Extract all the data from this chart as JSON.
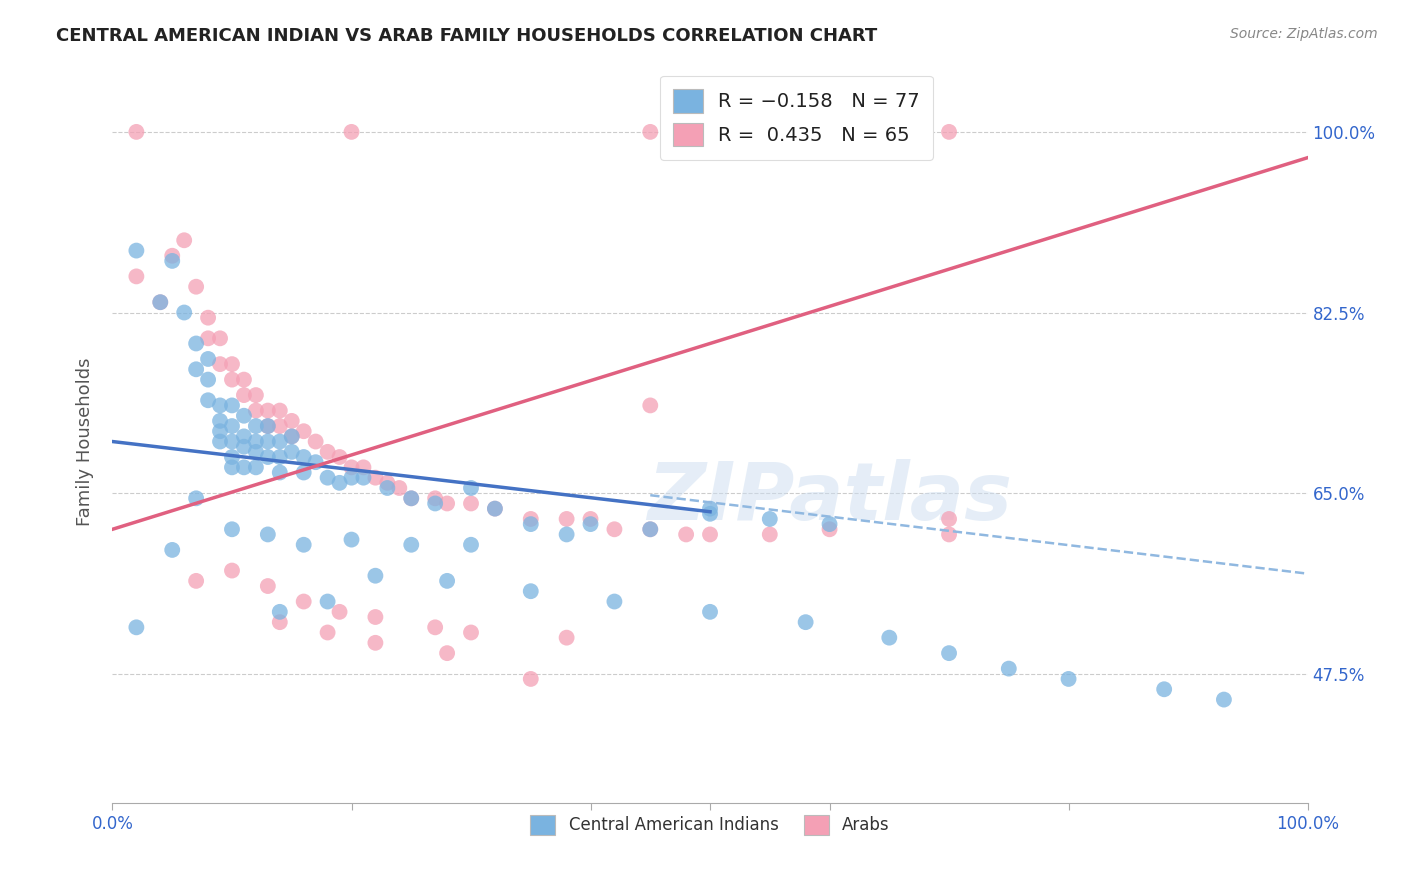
{
  "title": "CENTRAL AMERICAN INDIAN VS ARAB FAMILY HOUSEHOLDS CORRELATION CHART",
  "source": "Source: ZipAtlas.com",
  "ylabel": "Family Households",
  "ytick_labels": [
    "100.0%",
    "82.5%",
    "65.0%",
    "47.5%"
  ],
  "ytick_values": [
    1.0,
    0.825,
    0.65,
    0.475
  ],
  "xlim": [
    0.0,
    1.0
  ],
  "ylim": [
    0.35,
    1.05
  ],
  "legend_label1": "Central American Indians",
  "legend_label2": "Arabs",
  "blue_color": "#7ab3e0",
  "pink_color": "#f4a0b5",
  "blue_line_color": "#4472c4",
  "pink_line_color": "#e06080",
  "dashed_line_color": "#90b8e0",
  "watermark": "ZIPatlas",
  "blue_scatter_x": [
    0.02,
    0.04,
    0.05,
    0.06,
    0.07,
    0.07,
    0.08,
    0.08,
    0.08,
    0.09,
    0.09,
    0.09,
    0.09,
    0.1,
    0.1,
    0.1,
    0.1,
    0.1,
    0.11,
    0.11,
    0.11,
    0.11,
    0.12,
    0.12,
    0.12,
    0.12,
    0.13,
    0.13,
    0.13,
    0.14,
    0.14,
    0.14,
    0.15,
    0.15,
    0.16,
    0.16,
    0.17,
    0.18,
    0.19,
    0.2,
    0.21,
    0.23,
    0.25,
    0.27,
    0.3,
    0.32,
    0.35,
    0.4,
    0.45,
    0.5,
    0.02,
    0.05,
    0.07,
    0.1,
    0.13,
    0.16,
    0.2,
    0.25,
    0.3,
    0.38,
    0.14,
    0.18,
    0.22,
    0.28,
    0.35,
    0.42,
    0.5,
    0.58,
    0.65,
    0.7,
    0.75,
    0.8,
    0.88,
    0.93,
    0.5,
    0.55,
    0.6
  ],
  "blue_scatter_y": [
    0.885,
    0.835,
    0.875,
    0.825,
    0.795,
    0.77,
    0.78,
    0.76,
    0.74,
    0.735,
    0.72,
    0.71,
    0.7,
    0.735,
    0.715,
    0.7,
    0.685,
    0.675,
    0.725,
    0.705,
    0.695,
    0.675,
    0.715,
    0.7,
    0.69,
    0.675,
    0.715,
    0.7,
    0.685,
    0.7,
    0.685,
    0.67,
    0.705,
    0.69,
    0.685,
    0.67,
    0.68,
    0.665,
    0.66,
    0.665,
    0.665,
    0.655,
    0.645,
    0.64,
    0.655,
    0.635,
    0.62,
    0.62,
    0.615,
    0.63,
    0.52,
    0.595,
    0.645,
    0.615,
    0.61,
    0.6,
    0.605,
    0.6,
    0.6,
    0.61,
    0.535,
    0.545,
    0.57,
    0.565,
    0.555,
    0.545,
    0.535,
    0.525,
    0.51,
    0.495,
    0.48,
    0.47,
    0.46,
    0.45,
    0.635,
    0.625,
    0.62
  ],
  "pink_scatter_x": [
    0.02,
    0.04,
    0.05,
    0.06,
    0.07,
    0.08,
    0.08,
    0.09,
    0.09,
    0.1,
    0.1,
    0.11,
    0.11,
    0.12,
    0.12,
    0.13,
    0.13,
    0.14,
    0.14,
    0.15,
    0.15,
    0.16,
    0.17,
    0.18,
    0.19,
    0.2,
    0.21,
    0.22,
    0.23,
    0.24,
    0.25,
    0.27,
    0.28,
    0.3,
    0.32,
    0.35,
    0.38,
    0.4,
    0.42,
    0.45,
    0.48,
    0.5,
    0.55,
    0.6,
    0.7,
    0.7,
    0.45,
    0.02,
    0.2,
    0.45,
    0.7,
    0.07,
    0.1,
    0.13,
    0.16,
    0.19,
    0.22,
    0.27,
    0.3,
    0.38,
    0.14,
    0.18,
    0.22,
    0.28,
    0.35
  ],
  "pink_scatter_y": [
    0.86,
    0.835,
    0.88,
    0.895,
    0.85,
    0.8,
    0.82,
    0.775,
    0.8,
    0.76,
    0.775,
    0.76,
    0.745,
    0.745,
    0.73,
    0.73,
    0.715,
    0.73,
    0.715,
    0.72,
    0.705,
    0.71,
    0.7,
    0.69,
    0.685,
    0.675,
    0.675,
    0.665,
    0.66,
    0.655,
    0.645,
    0.645,
    0.64,
    0.64,
    0.635,
    0.625,
    0.625,
    0.625,
    0.615,
    0.615,
    0.61,
    0.61,
    0.61,
    0.615,
    0.625,
    0.61,
    0.735,
    1.0,
    1.0,
    1.0,
    1.0,
    0.565,
    0.575,
    0.56,
    0.545,
    0.535,
    0.53,
    0.52,
    0.515,
    0.51,
    0.525,
    0.515,
    0.505,
    0.495,
    0.47
  ],
  "blue_trend_x": [
    0.0,
    0.5
  ],
  "blue_trend_y": [
    0.7,
    0.632
  ],
  "pink_trend_x": [
    0.0,
    1.0
  ],
  "pink_trend_y": [
    0.615,
    0.975
  ],
  "dashed_trend_x": [
    0.45,
    1.0
  ],
  "dashed_trend_y": [
    0.648,
    0.572
  ]
}
